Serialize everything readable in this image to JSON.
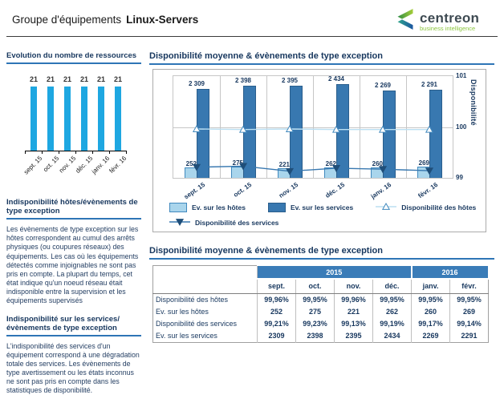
{
  "header": {
    "title_prefix": "Groupe d'équipements",
    "title_name": "Linux-Servers"
  },
  "logo": {
    "brand": "centreon",
    "tagline": "business intelligence"
  },
  "sidebar": {
    "resources_title": "Evolution du nombre de ressources",
    "hosts_heading": "Indisponibilité  hôtes/évènements de type exception",
    "hosts_text": "Les évènements de type exception sur les hôtes correspondent au cumul des arrêts physiques (ou coupures réseaux) des équipements. Les cas où les équipements détectés comme injoignables ne sont pas pris en compte. La plupart du temps, cet état indique qu'un noeud réseau était indisponible entre la supervision et les équipements supervisés",
    "services_heading": "Indisponibilité sur les services/ évènements de type exception",
    "services_text": "L'indisponibilité des services d'un équipement correspond à une dégradation totale des services. Les évènements de type avertissement ou les états inconnus ne sont pas pris en compte dans les statistiques de disponibilité."
  },
  "main": {
    "chart_title": "Disponibilité moyenne & évènements de type exception",
    "table_title": "Disponibilité moyenne & évènements de type exception",
    "table": {
      "year_groups": [
        {
          "label": "2015",
          "span": 4
        },
        {
          "label": "2016",
          "span": 2
        }
      ],
      "months": [
        "sept.",
        "oct.",
        "nov.",
        "déc.",
        "janv.",
        "févr."
      ],
      "rows": [
        {
          "label": "Disponibilité des hôtes",
          "values": [
            "99,96%",
            "99,95%",
            "99,96%",
            "99,95%",
            "99,95%",
            "99,95%"
          ]
        },
        {
          "label": "Ev. sur les hôtes",
          "values": [
            "252",
            "275",
            "221",
            "262",
            "260",
            "269"
          ]
        },
        {
          "label": "Disponibilité des services",
          "values": [
            "99,21%",
            "99,23%",
            "99,13%",
            "99,19%",
            "99,17%",
            "99,14%"
          ]
        },
        {
          "label": "Ev. sur les services",
          "values": [
            "2309",
            "2398",
            "2395",
            "2434",
            "2269",
            "2291"
          ]
        }
      ]
    }
  },
  "chart_data": [
    {
      "id": "resources",
      "type": "bar",
      "title": "Evolution du nombre de ressources",
      "categories": [
        "sept. 15",
        "oct. 15",
        "nov. 15",
        "déc. 15",
        "janv. 16",
        "févr. 16"
      ],
      "values": [
        21,
        21,
        21,
        21,
        21,
        21
      ],
      "ylim": [
        0,
        21
      ],
      "bar_color": "#1EA7E1",
      "grid": false,
      "legend": "none"
    },
    {
      "id": "availability",
      "type": "bar+line",
      "title": "Disponibilité moyenne & évènements de type exception",
      "categories": [
        "sept. 15",
        "oct. 15",
        "nov. 15",
        "déc. 15",
        "janv. 16",
        "févr. 16"
      ],
      "bar_series": [
        {
          "name": "Ev. sur les hôtes",
          "values": [
            252,
            275,
            221,
            262,
            260,
            269
          ],
          "color": "#A9D5EC",
          "border": "#4189BE"
        },
        {
          "name": "Ev. sur les services",
          "values": [
            2309,
            2398,
            2395,
            2434,
            2269,
            2291
          ],
          "color": "#3878B0",
          "border": "#2A5E8C"
        }
      ],
      "line_series": [
        {
          "name": "Disponibilité des hôtes",
          "values": [
            99.96,
            99.95,
            99.96,
            99.95,
            99.95,
            99.95
          ],
          "color": "#BBDFF2",
          "marker": "triangle-up",
          "marker_fill": "#ffffff",
          "marker_stroke": "#4189BE"
        },
        {
          "name": "Disponibilité des services",
          "values": [
            99.21,
            99.23,
            99.13,
            99.19,
            99.17,
            99.14
          ],
          "color": "#3878B0",
          "marker": "triangle-down",
          "marker_fill": "#1F4E79",
          "marker_stroke": "#1F4E79"
        }
      ],
      "bar_ylim": [
        0,
        2550
      ],
      "y2label": "Disponibilité",
      "y2ticks": [
        99,
        100,
        101
      ],
      "y2lim": [
        99,
        101
      ],
      "grid": true,
      "legend_position": "bottom"
    }
  ],
  "colors": {
    "accent_underline": "#2E75B6",
    "table_header": "#3A7CB8",
    "navy_text": "#17375E",
    "sidebar_bar": "#1EA7E1",
    "service_bar": "#3878B0",
    "host_bar": "#A9D5EC",
    "logo_green": "#8CC63F"
  }
}
